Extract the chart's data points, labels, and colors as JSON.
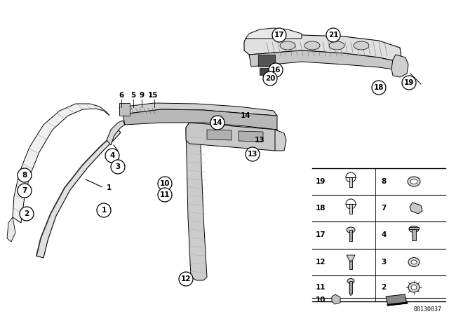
{
  "bg_color": "#ffffff",
  "line_color": "#000000",
  "part_number_text": "00130037",
  "fig_width": 6.4,
  "fig_height": 4.48,
  "dpi": 100
}
